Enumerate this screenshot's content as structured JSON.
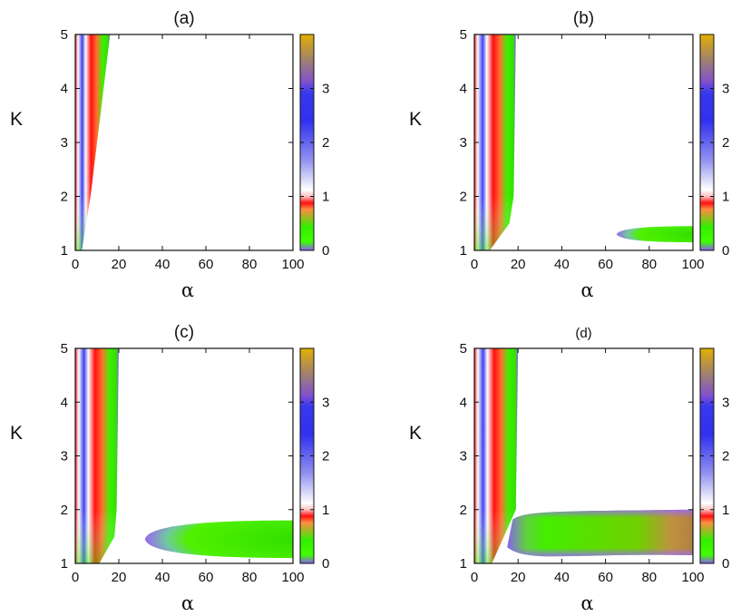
{
  "chart_data": [
    {
      "type": "heatmap",
      "title": "(a)",
      "xlabel": "α",
      "ylabel": "K",
      "xlim": [
        0,
        100
      ],
      "ylim": [
        1,
        5
      ],
      "xticks": [
        "0",
        "20",
        "40",
        "60",
        "80",
        "100"
      ],
      "yticks": [
        "1",
        "2",
        "3",
        "4",
        "5"
      ],
      "colorbar": {
        "range": [
          0,
          4
        ],
        "ticks": [
          "0",
          "1",
          "2",
          "3"
        ],
        "colors": [
          "#8a5cf5",
          "#33ee00",
          "#ff1010",
          "#ffffff",
          "#3030f0",
          "#e0b000"
        ]
      },
      "regions": [
        {
          "name": "left band",
          "alpha_max_at_K": [
            [
              1,
              3
            ],
            [
              2,
              7
            ],
            [
              3,
              10
            ],
            [
              4,
              13
            ],
            [
              5,
              16
            ]
          ],
          "value_range": [
            0,
            3.6
          ]
        }
      ]
    },
    {
      "type": "heatmap",
      "title": "(b)",
      "xlabel": "α",
      "ylabel": "K",
      "xlim": [
        0,
        100
      ],
      "ylim": [
        1,
        5
      ],
      "xticks": [
        "0",
        "20",
        "40",
        "60",
        "80",
        "100"
      ],
      "yticks": [
        "1",
        "2",
        "3",
        "4",
        "5"
      ],
      "colorbar": {
        "range": [
          0,
          4
        ],
        "ticks": [
          "0",
          "1",
          "2",
          "3"
        ],
        "colors": [
          "#8a5cf5",
          "#33ee00",
          "#ff1010",
          "#ffffff",
          "#3030f0",
          "#e0b000"
        ]
      },
      "regions": [
        {
          "name": "left band",
          "alpha_max_at_K": [
            [
              1,
              7
            ],
            [
              1.5,
              16
            ],
            [
              2,
              18
            ],
            [
              5,
              19
            ]
          ],
          "value_range": [
            0,
            3.6
          ]
        },
        {
          "name": "right tongue",
          "alpha_range": [
            65,
            100
          ],
          "K_center": 1.3,
          "K_halfwidth_at_100": 0.15,
          "value_range": [
            0,
            0.4
          ]
        }
      ]
    },
    {
      "type": "heatmap",
      "title": "(c)",
      "xlabel": "α",
      "ylabel": "K",
      "xlim": [
        0,
        100
      ],
      "ylim": [
        1,
        5
      ],
      "xticks": [
        "0",
        "20",
        "40",
        "60",
        "80",
        "100"
      ],
      "yticks": [
        "1",
        "2",
        "3",
        "4",
        "5"
      ],
      "colorbar": {
        "range": [
          0,
          4
        ],
        "ticks": [
          "0",
          "1",
          "2",
          "3"
        ],
        "colors": [
          "#8a5cf5",
          "#33ee00",
          "#ff1010",
          "#ffffff",
          "#3030f0",
          "#e0b000"
        ]
      },
      "regions": [
        {
          "name": "left band",
          "alpha_max_at_K": [
            [
              1,
              11
            ],
            [
              1.5,
              18
            ],
            [
              2,
              19
            ],
            [
              5,
              20
            ]
          ],
          "value_range": [
            0,
            3.6
          ]
        },
        {
          "name": "right tongue",
          "alpha_range": [
            32,
            100
          ],
          "K_center": 1.45,
          "K_halfwidth_at_100": 0.35,
          "value_range": [
            0,
            0.4
          ]
        }
      ]
    },
    {
      "type": "heatmap",
      "title": "(d)",
      "xlabel": "α",
      "ylabel": "K",
      "xlim": [
        0,
        100
      ],
      "ylim": [
        1,
        5
      ],
      "xticks": [
        "0",
        "20",
        "40",
        "60",
        "80",
        "100"
      ],
      "yticks": [
        "1",
        "2",
        "3",
        "4",
        "5"
      ],
      "colorbar": {
        "range": [
          0,
          4
        ],
        "ticks": [
          "0",
          "1",
          "2",
          "3"
        ],
        "colors": [
          "#8a5cf5",
          "#33ee00",
          "#ff1010",
          "#ffffff",
          "#3030f0",
          "#e0b000"
        ]
      },
      "regions": [
        {
          "name": "left band",
          "alpha_max_at_K": [
            [
              1,
              8
            ],
            [
              2,
              19
            ],
            [
              5,
              20
            ]
          ],
          "value_range": [
            0,
            3.6
          ]
        },
        {
          "name": "right band",
          "alpha_range": [
            20,
            100
          ],
          "K_range": [
            1.1,
            1.95
          ],
          "value_range": [
            0,
            0.6
          ]
        }
      ]
    }
  ]
}
